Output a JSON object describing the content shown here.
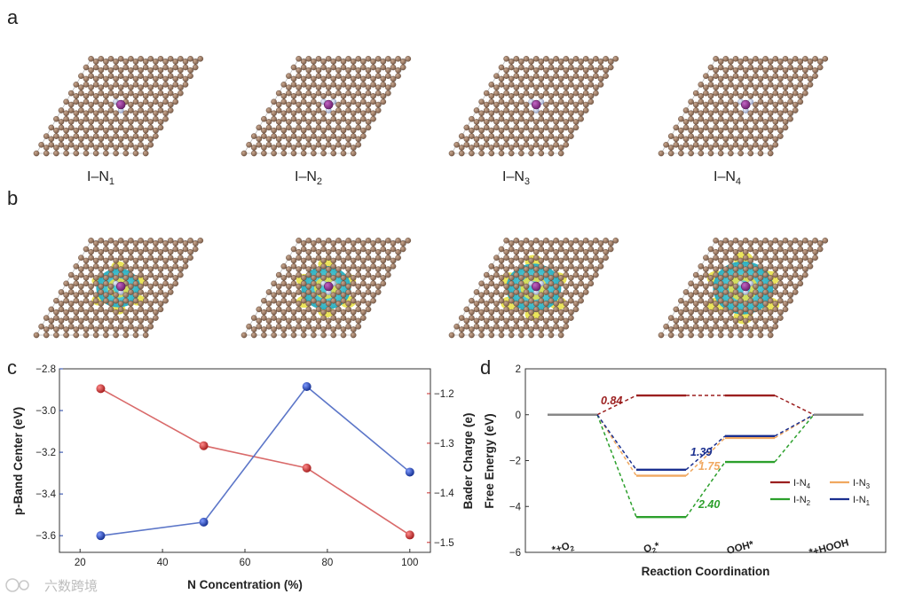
{
  "panels": {
    "a": {
      "letter": "a",
      "structures": [
        "I–N1",
        "I–N2",
        "I–N3",
        "I–N4"
      ],
      "labels": [
        {
          "base": "I–N",
          "sub": "1"
        },
        {
          "base": "I–N",
          "sub": "2"
        },
        {
          "base": "I–N",
          "sub": "3"
        },
        {
          "base": "I–N",
          "sub": "4"
        }
      ]
    },
    "b": {
      "letter": "b"
    },
    "c": {
      "letter": "c"
    },
    "d": {
      "letter": "d"
    }
  },
  "colors": {
    "carbon": "#8b6a55",
    "nitrogen": "#b8c2dc",
    "iodine": "#7d2a7e",
    "cyan_density": "#3ec6d6",
    "yellow_density": "#e9e24a",
    "blue_series": "#1f3fa3",
    "red_series": "#c62a2a",
    "line_blue": "#5c76c8",
    "line_red": "#d96a6a",
    "IN4": "#9b1f1f",
    "IN3": "#f0a860",
    "IN2": "#2ca02c",
    "IN1": "#1a2f8f",
    "ref": "#888888"
  },
  "chart_data": [
    {
      "type": "line",
      "panel": "c",
      "x": [
        25,
        50,
        75,
        100
      ],
      "xlabel": "N Concentration (%)",
      "xticks": [
        20,
        40,
        60,
        80,
        100
      ],
      "xlim": [
        15,
        105
      ],
      "series": [
        {
          "axis": "left",
          "values": [
            -3.6,
            -3.535,
            -2.885,
            -3.295
          ]
        },
        {
          "axis": "right",
          "values": [
            -1.19,
            -1.305,
            -1.35,
            -1.485
          ]
        }
      ],
      "ylabel_left": "p-Band Center (eV)",
      "ylim_left": [
        -3.68,
        -2.8
      ],
      "yticks_left": [
        "-2.8",
        "-3.0",
        "-3.2",
        "-3.4",
        "-3.6"
      ],
      "ylabel_right": "Bader Charge (e)",
      "ylim_right": [
        -1.52,
        -1.15
      ],
      "yticks_right": [
        "-1.2",
        "-1.3",
        "-1.4",
        "-1.5"
      ],
      "grid": false
    },
    {
      "type": "line",
      "panel": "d",
      "categories": [
        {
          "pre": "*+O",
          "sub": "2",
          "post": ""
        },
        {
          "pre": "O",
          "sub": "2",
          "post": "*"
        },
        {
          "pre": "OOH*",
          "sub": "",
          "post": ""
        },
        {
          "pre": "*+HOOH",
          "sub": "",
          "post": ""
        }
      ],
      "xlabel": "Reaction Coordination",
      "ylabel": "Free Energy (eV)",
      "ylim": [
        -6,
        2
      ],
      "yticks": [
        "2",
        "0",
        "-2",
        "-4",
        "-6"
      ],
      "series": [
        {
          "key": "IN4",
          "legend": {
            "base": "I-N",
            "sub": "4"
          },
          "values": [
            0,
            0.84,
            0.84,
            0
          ]
        },
        {
          "key": "IN3",
          "legend": {
            "base": "I-N",
            "sub": "3"
          },
          "values": [
            0,
            -2.66,
            -1.01,
            0
          ]
        },
        {
          "key": "IN2",
          "legend": {
            "base": "I-N",
            "sub": "2"
          },
          "values": [
            0,
            -4.46,
            -2.06,
            0
          ]
        },
        {
          "key": "IN1",
          "legend": {
            "base": "I-N",
            "sub": "1"
          },
          "values": [
            0,
            -2.4,
            -0.93,
            0
          ]
        }
      ],
      "annotations": [
        "0.84",
        "1.39",
        "1.75",
        "2.40"
      ],
      "legend_position": "right-middle",
      "grid": false
    }
  ],
  "watermark": "六数跨境"
}
